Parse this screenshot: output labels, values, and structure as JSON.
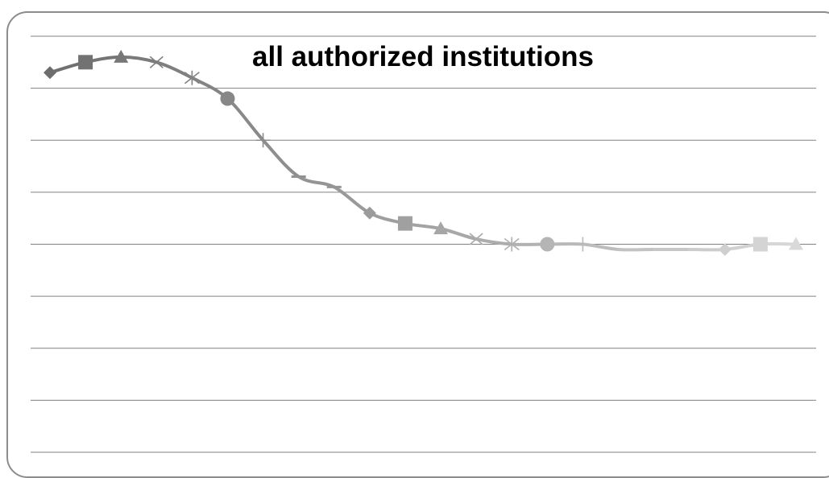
{
  "chart_data": {
    "type": "line",
    "title": "all authorized institutions",
    "xlabel": "",
    "ylabel": "",
    "ylim": [
      0,
      8
    ],
    "grid": true,
    "gridlines": 9,
    "legend": "none",
    "series": [
      {
        "values": [
          7.3,
          7.5,
          7.6,
          7.5,
          7.2,
          6.8,
          6.0,
          5.3,
          5.1,
          4.6,
          4.4,
          4.3,
          4.1,
          4.0,
          4.0,
          4.0,
          3.9,
          3.9,
          3.9,
          3.9,
          4.0,
          4.0
        ],
        "marker_sequence": [
          "diamond",
          "square",
          "triangle",
          "x",
          "star",
          "circle",
          "plus",
          "dash",
          "dash",
          "diamond",
          "square",
          "triangle",
          "x",
          "star",
          "circle",
          "plus",
          "none",
          "none",
          "none",
          "diamond",
          "square",
          "triangle"
        ]
      }
    ],
    "colors": {
      "line_start": "#6d6d6d",
      "line_end": "#d9d9d9",
      "grid": "#808080",
      "frame": "#8c8c8c"
    }
  }
}
